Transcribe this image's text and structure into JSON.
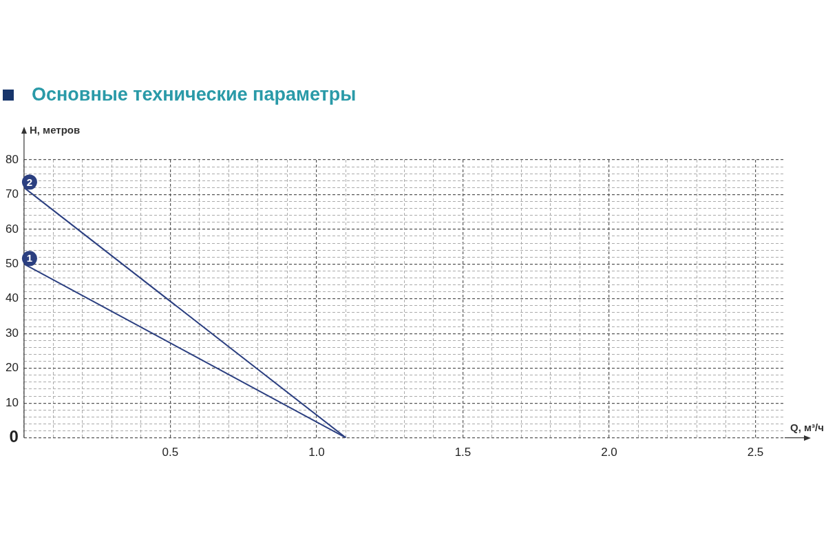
{
  "chart_data": {
    "type": "line",
    "title": "Основные технические параметры",
    "xlabel": "Q, м³/ч",
    "ylabel": "H, метров",
    "x": [
      0,
      1.1
    ],
    "series": [
      {
        "name": "1",
        "color": "#2b3f80",
        "values": [
          50,
          0
        ]
      },
      {
        "name": "2",
        "color": "#2b3f80",
        "values": [
          72,
          0
        ]
      }
    ],
    "xlim": [
      0,
      2.6
    ],
    "ylim": [
      0,
      80
    ],
    "xticks": [
      {
        "value": 0,
        "label": null
      },
      {
        "value": 0.1,
        "label": null
      },
      {
        "value": 0.2,
        "label": null
      },
      {
        "value": 0.3,
        "label": null
      },
      {
        "value": 0.4,
        "label": null
      },
      {
        "value": 0.5,
        "label": "0.5"
      },
      {
        "value": 0.6,
        "label": null
      },
      {
        "value": 0.7,
        "label": null
      },
      {
        "value": 0.8,
        "label": null
      },
      {
        "value": 0.9,
        "label": null
      },
      {
        "value": 1.0,
        "label": "1.0"
      },
      {
        "value": 1.1,
        "label": null
      },
      {
        "value": 1.2,
        "label": null
      },
      {
        "value": 1.3,
        "label": null
      },
      {
        "value": 1.4,
        "label": null
      },
      {
        "value": 1.5,
        "label": "1.5"
      },
      {
        "value": 1.6,
        "label": null
      },
      {
        "value": 1.7,
        "label": null
      },
      {
        "value": 1.8,
        "label": null
      },
      {
        "value": 1.9,
        "label": null
      },
      {
        "value": 2.0,
        "label": "2.0"
      },
      {
        "value": 2.1,
        "label": null
      },
      {
        "value": 2.2,
        "label": null
      },
      {
        "value": 2.3,
        "label": null
      },
      {
        "value": 2.4,
        "label": null
      },
      {
        "value": 2.5,
        "label": "2.5"
      }
    ],
    "yticks": [
      0,
      {
        "value": 2,
        "label": null
      },
      {
        "value": 4,
        "label": null
      },
      {
        "value": 6,
        "label": null
      },
      {
        "value": 8,
        "label": null
      },
      10,
      {
        "value": 12,
        "label": null
      },
      {
        "value": 14,
        "label": null
      },
      {
        "value": 16,
        "label": null
      },
      {
        "value": 18,
        "label": null
      },
      20,
      {
        "value": 22,
        "label": null
      },
      {
        "value": 24,
        "label": null
      },
      {
        "value": 26,
        "label": null
      },
      {
        "value": 28,
        "label": null
      },
      30,
      {
        "value": 32,
        "label": null
      },
      {
        "value": 34,
        "label": null
      },
      {
        "value": 36,
        "label": null
      },
      {
        "value": 38,
        "label": null
      },
      40,
      {
        "value": 42,
        "label": null
      },
      {
        "value": 44,
        "label": null
      },
      {
        "value": 46,
        "label": null
      },
      {
        "value": 48,
        "label": null
      },
      50,
      {
        "value": 52,
        "label": null
      },
      {
        "value": 54,
        "label": null
      },
      {
        "value": 56,
        "label": null
      },
      {
        "value": 58,
        "label": null
      },
      60,
      {
        "value": 62,
        "label": null
      },
      {
        "value": 64,
        "label": null
      },
      {
        "value": 66,
        "label": null
      },
      {
        "value": 68,
        "label": null
      },
      70,
      {
        "value": 72,
        "label": null
      },
      {
        "value": 74,
        "label": null
      },
      {
        "value": 76,
        "label": null
      },
      {
        "value": 78,
        "label": null
      },
      80
    ],
    "grid": true,
    "legend": false,
    "marker": "none",
    "line_style": "solid"
  }
}
